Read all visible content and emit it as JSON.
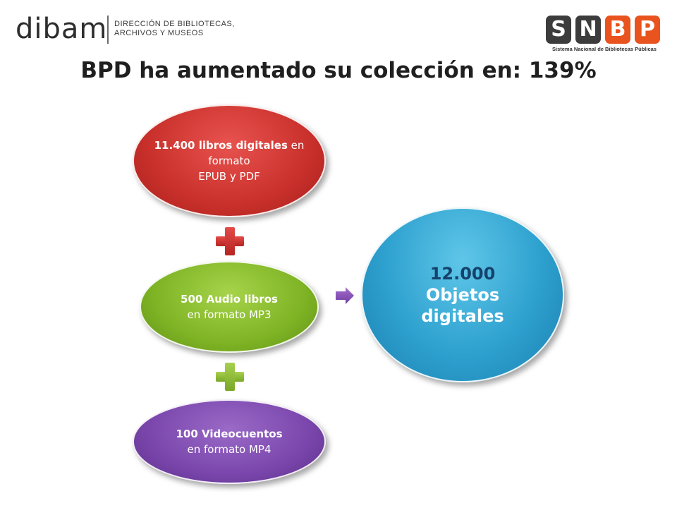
{
  "logos": {
    "dibam": {
      "wordmark": "dibam",
      "subtitle_line1": "DIRECCIÓN DE BIBLIOTECAS,",
      "subtitle_line2": "ARCHIVOS Y MUSEOS"
    },
    "snbp": {
      "letters": [
        "S",
        "N",
        "B",
        "P"
      ],
      "letter_colors": [
        "#3c3c3c",
        "#3c3c3c",
        "#e9531e",
        "#e9531e"
      ],
      "caption": "Sistema Nacional de Bibliotecas Públicas"
    }
  },
  "title": "BPD ha aumentado su colección en: 139%",
  "diagram": {
    "ebooks": {
      "bold": "11.400 libros digitales",
      "rest1": " en formato",
      "rest2": "EPUB y PDF",
      "color": "#c9302b"
    },
    "audiobooks": {
      "bold": "500  Audio libros",
      "rest": "en formato MP3",
      "color": "#7fb425"
    },
    "videos": {
      "bold": "100 Videocuentos",
      "rest": "en formato MP4",
      "color": "#7a46ac"
    },
    "total": {
      "number": "12.000",
      "line2": "Objetos",
      "line3": "digitales",
      "color": "#2ea1cf"
    },
    "connectors": [
      "plus-icon",
      "plus-icon",
      "arrow-right-icon"
    ]
  }
}
